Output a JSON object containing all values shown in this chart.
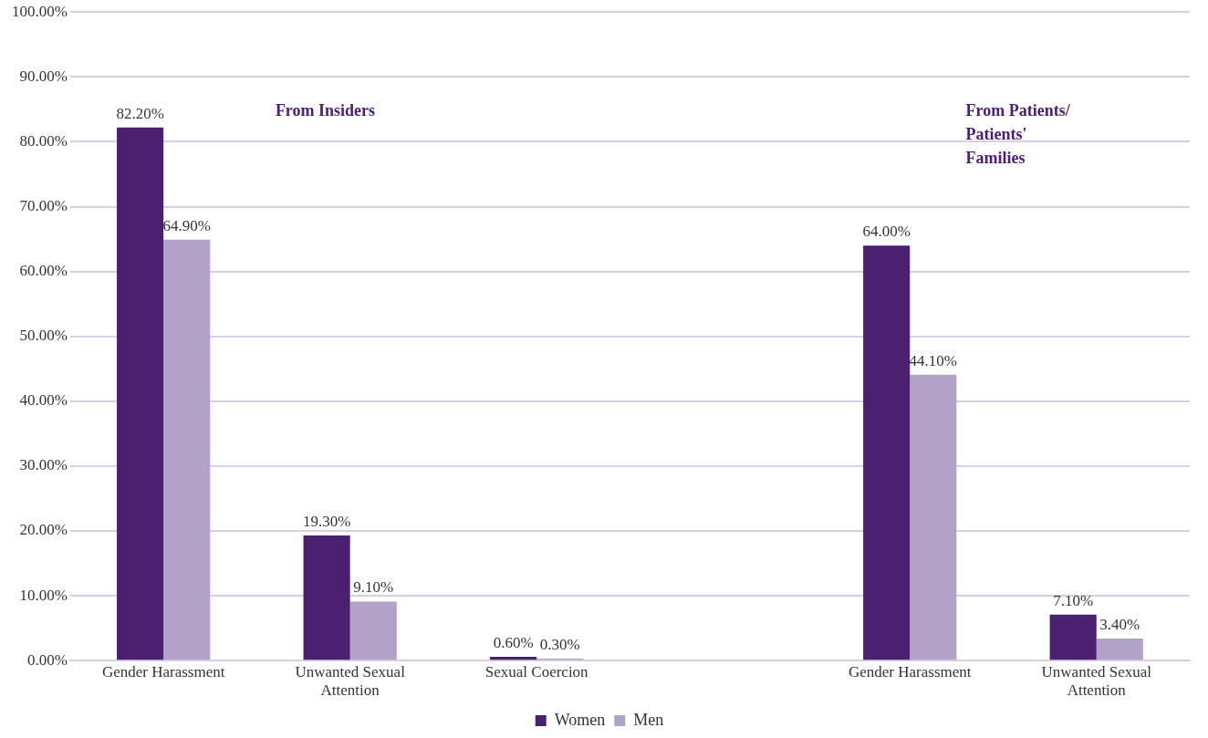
{
  "chart_data": {
    "type": "bar",
    "categories": [
      "Gender Harassment",
      "Unwanted Sexual Attention",
      "Sexual Coercion",
      null,
      "Gender Harassment",
      "Unwanted Sexual Attention"
    ],
    "series": [
      {
        "name": "Women",
        "color": "#4b2070",
        "values": [
          82.2,
          19.3,
          0.6,
          null,
          64.0,
          7.1
        ],
        "value_labels": [
          "82.20%",
          "19.30%",
          "0.60%",
          null,
          "64.00%",
          "7.10%"
        ]
      },
      {
        "name": "Men",
        "color": "#b3a2c8",
        "values": [
          64.9,
          9.1,
          0.3,
          null,
          44.1,
          3.4
        ],
        "value_labels": [
          "64.90%",
          "9.10%",
          "0.30%",
          null,
          "44.10%",
          "3.40%"
        ]
      }
    ],
    "ylim": [
      0,
      100
    ],
    "yticks": [
      {
        "value": 0,
        "label": "0.00%"
      },
      {
        "value": 10,
        "label": "10.00%"
      },
      {
        "value": 20,
        "label": "20.00%"
      },
      {
        "value": 30,
        "label": "30.00%"
      },
      {
        "value": 40,
        "label": "40.00%"
      },
      {
        "value": 50,
        "label": "50.00%"
      },
      {
        "value": 60,
        "label": "60.00%"
      },
      {
        "value": 70,
        "label": "70.00%"
      },
      {
        "value": 80,
        "label": "80.00%"
      },
      {
        "value": 90,
        "label": "90.00%"
      },
      {
        "value": 100,
        "label": "100.00%"
      }
    ],
    "grid": "y",
    "legend": "bottom",
    "annotations": [
      "From Insiders",
      "From Patients/ Patients' Families"
    ]
  }
}
